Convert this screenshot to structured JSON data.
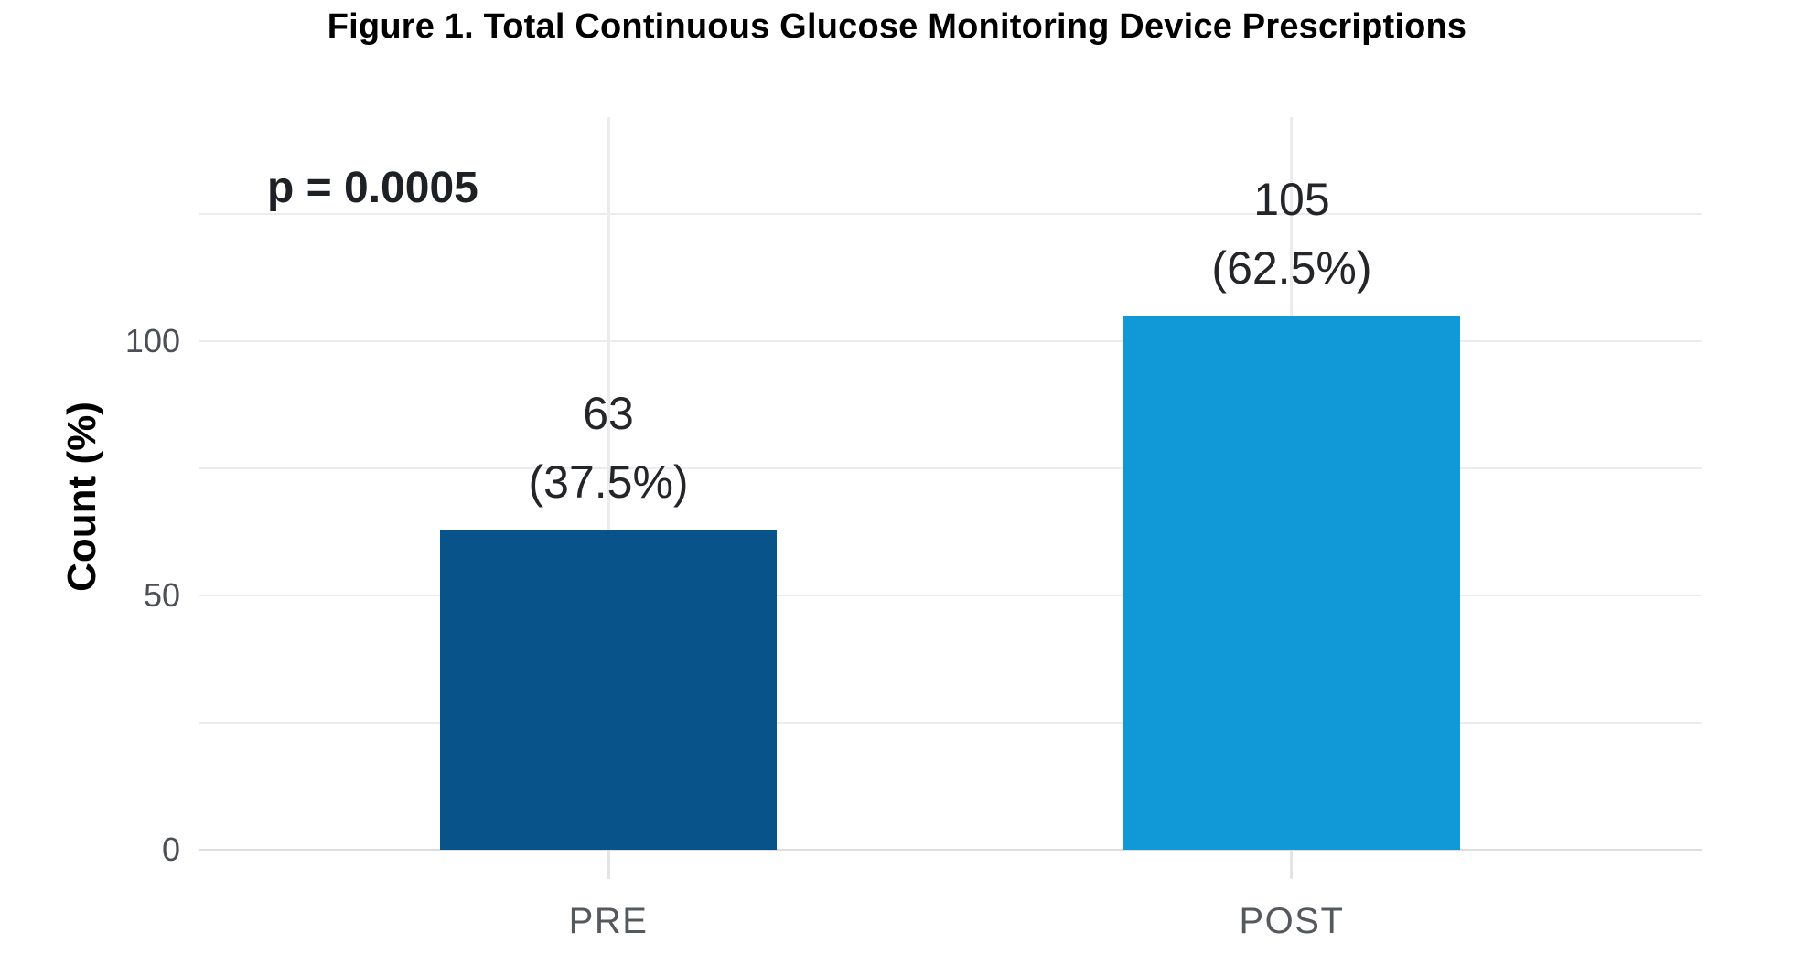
{
  "chart_data": {
    "type": "bar",
    "title": "Figure 1. Total Continuous Glucose Monitoring Device Prescriptions",
    "categories": [
      "PRE",
      "POST"
    ],
    "values": [
      63,
      105
    ],
    "bar_labels": [
      {
        "count": "63",
        "percent": "(37.5%)"
      },
      {
        "count": "105",
        "percent": "(62.5%)"
      }
    ],
    "bar_colors": [
      "#085389",
      "#1099D6"
    ],
    "annotation": "p = 0.0005",
    "xlabel": "",
    "ylabel": "Count (%)",
    "ytick_values": [
      0,
      50,
      100
    ],
    "ytick_labels": [
      "0",
      "50",
      "100"
    ],
    "gridline_values": [
      25,
      50,
      75,
      100,
      125
    ],
    "ylim": [
      0,
      144
    ],
    "grid": "on",
    "legend": "none",
    "colors": {
      "grid": "#ececec",
      "axis_line": "#dedede",
      "tick_mark": "#e4e4e4",
      "tick_label": "#4c5056",
      "category_label": "#55585d",
      "value_label": "#232529",
      "annotation": "#1d2025",
      "title": "#000000",
      "background": "#ffffff"
    },
    "layout": {
      "bar_centers_frac": [
        0.2727,
        0.7273
      ],
      "bar_width_frac": 0.224,
      "legend_position": "none"
    }
  }
}
